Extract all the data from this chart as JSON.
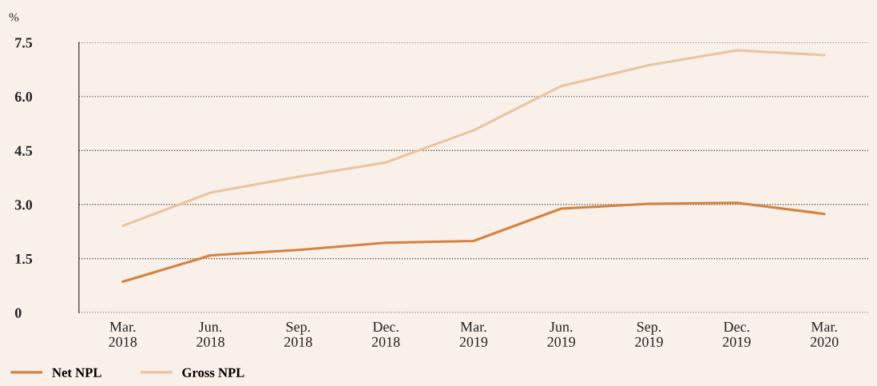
{
  "chart_data": {
    "type": "line",
    "ylabel": "%",
    "categories": [
      "Mar.\n2018",
      "Jun.\n2018",
      "Sep.\n2018",
      "Dec.\n2018",
      "Mar.\n2019",
      "Jun.\n2019",
      "Sep.\n2019",
      "Dec.\n2019",
      "Mar.\n2020"
    ],
    "series": [
      {
        "name": "Net NPL",
        "color": "#d4823e",
        "values": [
          0.86,
          1.59,
          1.74,
          1.94,
          1.99,
          2.89,
          3.02,
          3.05,
          2.74
        ]
      },
      {
        "name": "Gross NPL",
        "color": "#e9c4a0",
        "values": [
          2.41,
          3.33,
          3.77,
          4.17,
          5.06,
          6.29,
          6.87,
          7.28,
          7.15
        ]
      }
    ],
    "ylim": [
      0,
      7.5
    ],
    "yticks": [
      {
        "value": 0,
        "label": "0"
      },
      {
        "value": 1.5,
        "label": "1.5"
      },
      {
        "value": 3,
        "label": "3.0"
      },
      {
        "value": 4.5,
        "label": "4.5"
      },
      {
        "value": 6,
        "label": "6.0"
      },
      {
        "value": 7.5,
        "label": "7.5"
      }
    ],
    "grid": "y",
    "legend": "bottom left",
    "marker": "none",
    "line_style": "solid"
  }
}
